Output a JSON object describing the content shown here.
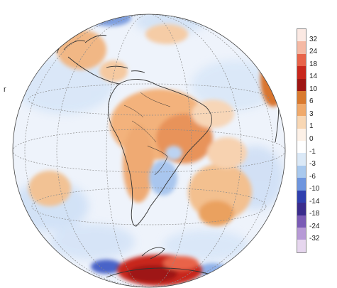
{
  "side_label": "r",
  "colorbar": {
    "labels": [
      "32",
      "24",
      "18",
      "14",
      "10",
      "6",
      "3",
      "1",
      "0",
      "-1",
      "-3",
      "-6",
      "-10",
      "-14",
      "-18",
      "-24",
      "-32"
    ],
    "colors": [
      "#fbe9e3",
      "#f5b9a4",
      "#e8644a",
      "#c8271c",
      "#9e1613",
      "#d97a2f",
      "#f0aa6c",
      "#f8d7b4",
      "#fdf1e7",
      "#ffffff",
      "#dbe9f7",
      "#a9c9ee",
      "#6e95de",
      "#2f3fae",
      "#3a2c8c",
      "#7a5bb5",
      "#b79ad6",
      "#e6d6ee"
    ]
  }
}
